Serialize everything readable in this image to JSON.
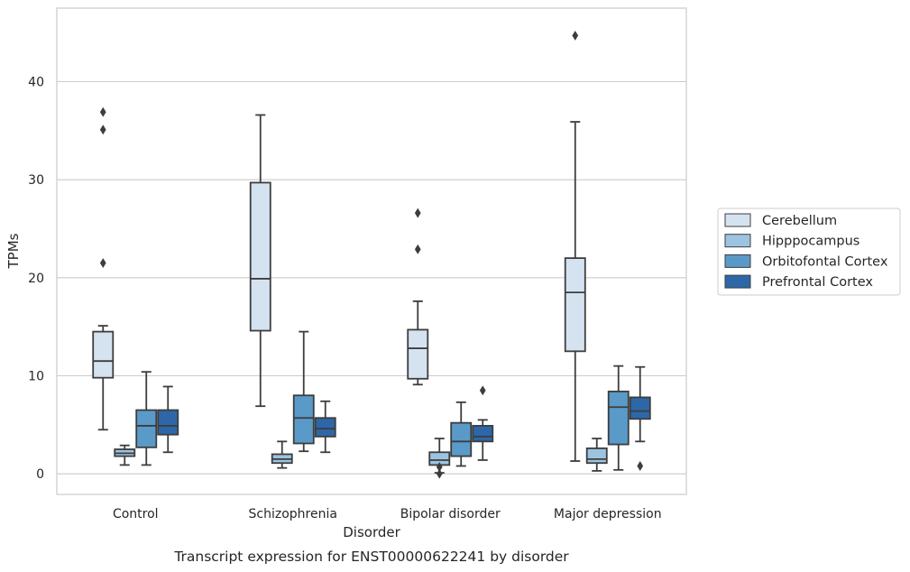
{
  "chart_data": {
    "type": "box",
    "caption": "Transcript expression for ENST00000622241 by disorder",
    "xlabel": "Disorder",
    "ylabel": "TPMs",
    "ylim": [
      -2.1,
      47.5
    ],
    "yticks": [
      0,
      10,
      20,
      30,
      40
    ],
    "grid": "horizontal",
    "legend_position": "right",
    "categories": [
      "Control",
      "Schizophrenia",
      "Bipolar disorder",
      "Major depression"
    ],
    "series": [
      {
        "name": "Cerebellum",
        "color": "#d5e3f1",
        "boxes": [
          {
            "whisker_low": 4.5,
            "q1": 9.8,
            "median": 11.5,
            "q3": 14.5,
            "whisker_high": 15.1,
            "outliers": [
              21.5,
              35.1,
              36.9
            ]
          },
          {
            "whisker_low": 6.9,
            "q1": 14.6,
            "median": 19.9,
            "q3": 29.7,
            "whisker_high": 36.6,
            "outliers": []
          },
          {
            "whisker_low": 9.1,
            "q1": 9.7,
            "median": 12.8,
            "q3": 14.7,
            "whisker_high": 17.6,
            "outliers": [
              22.9,
              26.6
            ]
          },
          {
            "whisker_low": 1.3,
            "q1": 12.5,
            "median": 18.5,
            "q3": 22.0,
            "whisker_high": 35.9,
            "outliers": [
              44.7
            ]
          }
        ]
      },
      {
        "name": "Hipppocampus",
        "color": "#9cc4e0",
        "boxes": [
          {
            "whisker_low": 0.9,
            "q1": 1.8,
            "median": 2.1,
            "q3": 2.5,
            "whisker_high": 2.9,
            "outliers": []
          },
          {
            "whisker_low": 0.6,
            "q1": 1.1,
            "median": 1.5,
            "q3": 2.0,
            "whisker_high": 3.3,
            "outliers": []
          },
          {
            "whisker_low": 0.1,
            "q1": 0.9,
            "median": 1.4,
            "q3": 2.2,
            "whisker_high": 3.6,
            "outliers": [
              0.7,
              0.0
            ]
          },
          {
            "whisker_low": 0.3,
            "q1": 1.1,
            "median": 1.5,
            "q3": 2.6,
            "whisker_high": 3.6,
            "outliers": []
          }
        ]
      },
      {
        "name": "Orbitofontal Cortex",
        "color": "#5a9ac8",
        "boxes": [
          {
            "whisker_low": 0.9,
            "q1": 2.7,
            "median": 4.9,
            "q3": 6.5,
            "whisker_high": 10.4,
            "outliers": []
          },
          {
            "whisker_low": 2.3,
            "q1": 3.1,
            "median": 5.7,
            "q3": 8.0,
            "whisker_high": 14.5,
            "outliers": []
          },
          {
            "whisker_low": 0.8,
            "q1": 1.8,
            "median": 3.3,
            "q3": 5.2,
            "whisker_high": 7.3,
            "outliers": []
          },
          {
            "whisker_low": 0.4,
            "q1": 3.0,
            "median": 6.8,
            "q3": 8.4,
            "whisker_high": 11.0,
            "outliers": []
          }
        ]
      },
      {
        "name": "Prefrontal Cortex",
        "color": "#2d67a8",
        "boxes": [
          {
            "whisker_low": 2.2,
            "q1": 4.0,
            "median": 4.9,
            "q3": 6.5,
            "whisker_high": 8.9,
            "outliers": []
          },
          {
            "whisker_low": 2.2,
            "q1": 3.8,
            "median": 4.6,
            "q3": 5.7,
            "whisker_high": 7.4,
            "outliers": []
          },
          {
            "whisker_low": 1.4,
            "q1": 3.3,
            "median": 3.8,
            "q3": 4.9,
            "whisker_high": 5.5,
            "outliers": [
              8.5
            ]
          },
          {
            "whisker_low": 3.3,
            "q1": 5.6,
            "median": 6.4,
            "q3": 7.8,
            "whisker_high": 10.9,
            "outliers": [
              0.8
            ]
          }
        ]
      }
    ]
  }
}
